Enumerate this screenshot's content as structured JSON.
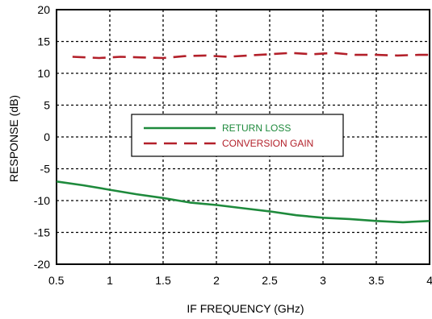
{
  "chart_data": {
    "type": "line",
    "xlabel": "IF FREQUENCY (GHz)",
    "ylabel": "RESPONSE (dB)",
    "xlim": [
      0.5,
      4
    ],
    "ylim": [
      -20,
      20
    ],
    "xticks": [
      "0.5",
      "1",
      "1.5",
      "2",
      "2.5",
      "3",
      "3.5",
      "4"
    ],
    "yticks": [
      "-20",
      "-15",
      "-10",
      "-5",
      "0",
      "5",
      "10",
      "15",
      "20"
    ],
    "grid": true,
    "legend_position": "center",
    "series": [
      {
        "name": "RETURN LOSS",
        "color": "#1e8a3c",
        "dash": "solid",
        "x": [
          0.5,
          0.75,
          1.0,
          1.25,
          1.5,
          1.75,
          2.0,
          2.25,
          2.5,
          2.75,
          3.0,
          3.25,
          3.5,
          3.75,
          4.0
        ],
        "y": [
          -7.0,
          -7.6,
          -8.3,
          -9.0,
          -9.6,
          -10.3,
          -10.7,
          -11.2,
          -11.7,
          -12.3,
          -12.7,
          -12.9,
          -13.2,
          -13.4,
          -13.2
        ]
      },
      {
        "name": "CONVERSION GAIN",
        "color": "#b3202a",
        "dash": "dashed",
        "x": [
          0.65,
          0.9,
          1.1,
          1.3,
          1.5,
          1.7,
          1.9,
          2.1,
          2.3,
          2.5,
          2.7,
          2.9,
          3.1,
          3.3,
          3.5,
          3.7,
          3.9,
          4.0
        ],
        "y": [
          12.6,
          12.4,
          12.6,
          12.5,
          12.4,
          12.7,
          12.8,
          12.6,
          12.8,
          13.0,
          13.2,
          13.0,
          13.2,
          12.9,
          12.9,
          12.8,
          12.9,
          12.9
        ]
      }
    ]
  }
}
